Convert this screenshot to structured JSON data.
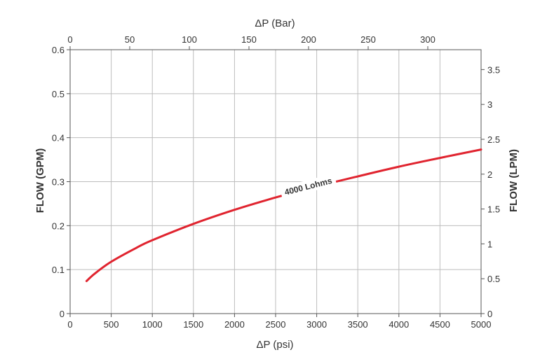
{
  "chart_data": {
    "type": "line",
    "bottom_axis": {
      "label": "ΔP (psi)",
      "range": [
        0,
        5000
      ],
      "ticks": [
        "0",
        "500",
        "1000",
        "1500",
        "2000",
        "2500",
        "3000",
        "3500",
        "4000",
        "4500",
        "5000"
      ]
    },
    "top_axis": {
      "label": "ΔP (Bar)",
      "range_bar": [
        0,
        344.7
      ],
      "ticks": [
        "0",
        "50",
        "100",
        "150",
        "200",
        "250",
        "300"
      ]
    },
    "left_axis": {
      "label": "FLOW (GPM)",
      "range": [
        0,
        0.6
      ],
      "ticks": [
        "0",
        "0.1",
        "0.2",
        "0.3",
        "0.4",
        "0.5",
        "0.6"
      ]
    },
    "right_axis": {
      "label": "FLOW (LPM)",
      "range_lpm": [
        0,
        3.785
      ],
      "ticks": [
        "0",
        "0.5",
        "1",
        "1.5",
        "2",
        "2.5",
        "3",
        "3.5"
      ]
    },
    "grid": true,
    "series": [
      {
        "name": "4000 Lohms",
        "color": "#e0242f",
        "x": [
          200,
          300,
          500,
          800,
          1000,
          1500,
          2000,
          2500,
          3000,
          3500,
          4000,
          4500,
          5000
        ],
        "y": [
          0.074,
          0.091,
          0.118,
          0.149,
          0.167,
          0.204,
          0.236,
          0.264,
          0.289,
          0.312,
          0.334,
          0.354,
          0.373
        ]
      }
    ]
  }
}
